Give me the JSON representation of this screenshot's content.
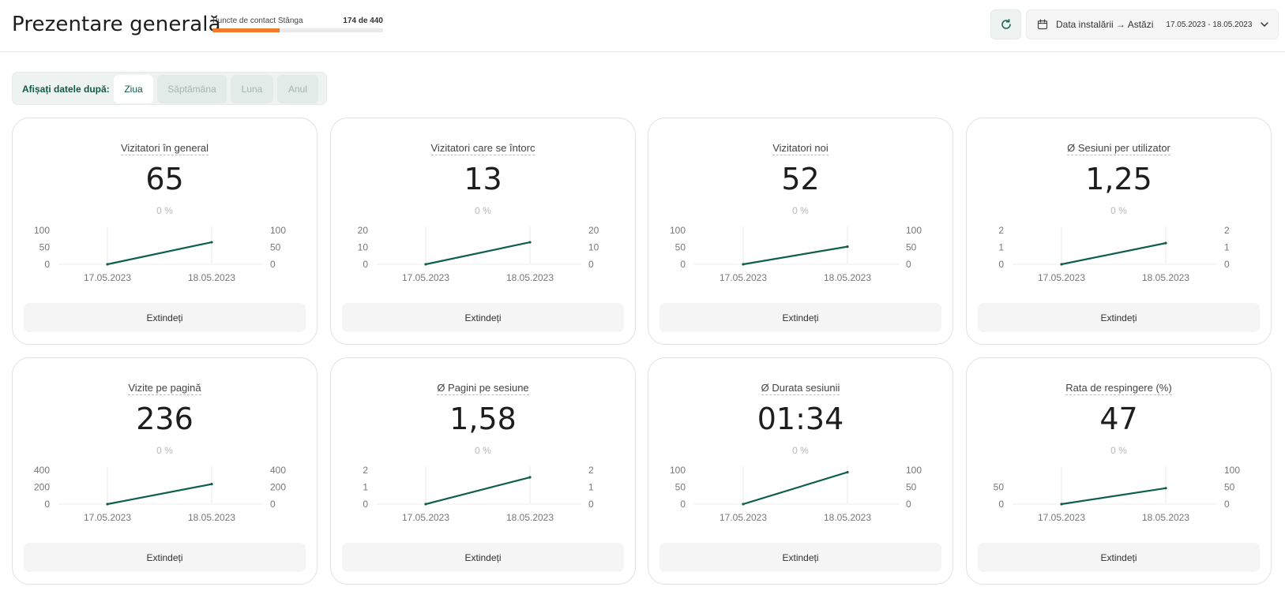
{
  "header": {
    "title": "Prezentare generală",
    "contact_points": {
      "label": "Puncte de contact Stânga",
      "used": 174,
      "total": 440,
      "count_text": "174 de 440"
    },
    "refresh_icon": "refresh-icon",
    "date_range": {
      "label": "Data instalării → Astăzi",
      "dates": "17.05.2023 - 18.05.2023",
      "icon": "calendar-icon"
    }
  },
  "colors": {
    "accent": "#0e5a4a",
    "progress": "#f07b2a",
    "line": "#0f5f4f"
  },
  "filter": {
    "label": "Afișați datele după:",
    "options": [
      {
        "label": "Ziua",
        "active": true
      },
      {
        "label": "Săptămâna",
        "active": false
      },
      {
        "label": "Luna",
        "active": false
      },
      {
        "label": "Anul",
        "active": false
      }
    ]
  },
  "expand_label": "Extindeți",
  "chart_data": [
    {
      "type": "line",
      "title": "Vizitatori în general",
      "value": "65",
      "change": "0 %",
      "x": [
        "17.05.2023",
        "18.05.2023"
      ],
      "y": [
        0,
        65
      ],
      "y_ticks_left": [
        0,
        50,
        100
      ],
      "y_ticks_right": [
        0,
        50,
        100
      ],
      "ylim": [
        0,
        100
      ]
    },
    {
      "type": "line",
      "title": "Vizitatori care se întorc",
      "value": "13",
      "change": "0 %",
      "x": [
        "17.05.2023",
        "18.05.2023"
      ],
      "y": [
        0,
        13
      ],
      "y_ticks_left": [
        0,
        10,
        20
      ],
      "y_ticks_right": [
        0,
        10,
        20
      ],
      "ylim": [
        0,
        20
      ]
    },
    {
      "type": "line",
      "title": "Vizitatori noi",
      "value": "52",
      "change": "0 %",
      "x": [
        "17.05.2023",
        "18.05.2023"
      ],
      "y": [
        0,
        52
      ],
      "y_ticks_left": [
        0,
        50,
        100
      ],
      "y_ticks_right": [
        0,
        50,
        100
      ],
      "ylim": [
        0,
        100
      ]
    },
    {
      "type": "line",
      "title": "Ø Sesiuni per utilizator",
      "value": "1,25",
      "change": "0 %",
      "x": [
        "17.05.2023",
        "18.05.2023"
      ],
      "y": [
        0,
        1.25
      ],
      "y_ticks_left": [
        0,
        1,
        2
      ],
      "y_ticks_right": [
        0,
        1,
        2
      ],
      "ylim": [
        0,
        2
      ]
    },
    {
      "type": "line",
      "title": "Vizite pe pagină",
      "value": "236",
      "change": "0 %",
      "x": [
        "17.05.2023",
        "18.05.2023"
      ],
      "y": [
        0,
        236
      ],
      "y_ticks_left": [
        0,
        200,
        400
      ],
      "y_ticks_right": [
        0,
        200,
        400
      ],
      "ylim": [
        0,
        400
      ]
    },
    {
      "type": "line",
      "title": "Ø Pagini pe sesiune",
      "value": "1,58",
      "change": "0 %",
      "x": [
        "17.05.2023",
        "18.05.2023"
      ],
      "y": [
        0,
        1.58
      ],
      "y_ticks_left": [
        0,
        1,
        2
      ],
      "y_ticks_right": [
        0,
        1,
        2
      ],
      "ylim": [
        0,
        2
      ]
    },
    {
      "type": "line",
      "title": "Ø Durata sesiunii",
      "value": "01:34",
      "change": "0 %",
      "x": [
        "17.05.2023",
        "18.05.2023"
      ],
      "y": [
        0,
        94
      ],
      "y_ticks_left": [
        0,
        50,
        100
      ],
      "y_ticks_right": [
        0,
        50,
        100
      ],
      "ylim": [
        0,
        100
      ]
    },
    {
      "type": "line",
      "title": "Rata de respingere (%)",
      "value": "47",
      "change": "0 %",
      "x": [
        "17.05.2023",
        "18.05.2023"
      ],
      "y": [
        0,
        47
      ],
      "y_ticks_left": [
        0,
        50
      ],
      "y_ticks_right": [
        0,
        50,
        100
      ],
      "ylim": [
        0,
        100
      ]
    }
  ]
}
